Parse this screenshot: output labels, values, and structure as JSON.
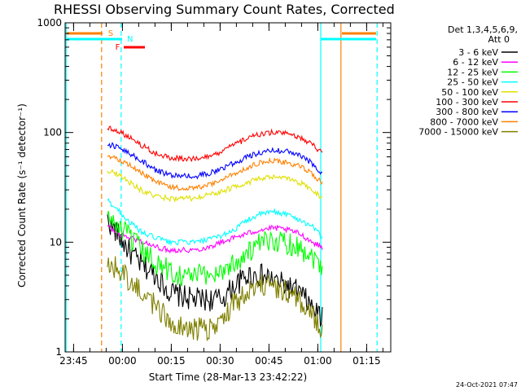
{
  "chart_data": {
    "type": "line",
    "title": "RHESSI Observing Summary Count Rates, Corrected",
    "xlabel": "Start Time (28-Mar-13 23:42:22)",
    "ylabel": "Corrected Count Rate (s⁻¹ detector⁻¹)",
    "y_scale": "log",
    "ylim": [
      1,
      1000
    ],
    "xlim_min_from_start": [
      0,
      100
    ],
    "x_ticks": [
      {
        "label": "23:45",
        "t": 2.6
      },
      {
        "label": "00:00",
        "t": 17.6
      },
      {
        "label": "00:15",
        "t": 32.6
      },
      {
        "label": "00:30",
        "t": 47.6
      },
      {
        "label": "00:45",
        "t": 62.6
      },
      {
        "label": "01:00",
        "t": 77.6
      },
      {
        "label": "01:15",
        "t": 92.6
      }
    ],
    "y_ticks": [
      {
        "label": "1",
        "v": 1
      },
      {
        "label": "10",
        "v": 10
      },
      {
        "label": "100",
        "v": 100
      },
      {
        "label": "1000",
        "v": 1000
      }
    ],
    "legend_header": [
      "Det 1,3,4,5,6,9,",
      "Att 0"
    ],
    "legend_position": "right",
    "series": [
      {
        "name": "3 - 6 keV",
        "color": "#000000",
        "x": [
          13,
          16,
          20,
          24,
          28,
          32,
          36,
          40,
          44,
          48,
          52,
          56,
          60,
          64,
          68,
          72,
          76,
          79
        ],
        "y": [
          16,
          12,
          8,
          6,
          5,
          3.5,
          3.2,
          3,
          3,
          3,
          4,
          5,
          5,
          4.5,
          4,
          3.5,
          2.5,
          2
        ]
      },
      {
        "name": "6 - 12 keV",
        "color": "#ff00ff",
        "x": [
          13,
          16,
          20,
          24,
          28,
          32,
          36,
          40,
          44,
          48,
          52,
          56,
          60,
          64,
          68,
          72,
          76,
          79
        ],
        "y": [
          14,
          12,
          11,
          10,
          9,
          8.5,
          8.5,
          8.5,
          9,
          10,
          11,
          12,
          13,
          13.5,
          13,
          12,
          10,
          9
        ]
      },
      {
        "name": "12 - 25 keV",
        "color": "#00ff00",
        "x": [
          13,
          16,
          20,
          24,
          28,
          32,
          36,
          40,
          44,
          48,
          52,
          56,
          60,
          64,
          68,
          72,
          76,
          79
        ],
        "y": [
          17,
          14,
          11,
          8,
          6.5,
          5.5,
          5,
          5,
          5,
          5.5,
          6.5,
          8,
          9.5,
          10.5,
          10,
          9,
          7.5,
          6
        ]
      },
      {
        "name": "25 - 50 keV",
        "color": "#00ffff",
        "x": [
          13,
          16,
          20,
          24,
          28,
          32,
          36,
          40,
          44,
          48,
          52,
          56,
          60,
          64,
          68,
          72,
          76,
          79
        ],
        "y": [
          24,
          20,
          15,
          12,
          11,
          10,
          10,
          10,
          10.5,
          11.5,
          13,
          16,
          18,
          19,
          18,
          16,
          14,
          11
        ]
      },
      {
        "name": "50 - 100 keV",
        "color": "#e0e000",
        "x": [
          13,
          16,
          20,
          24,
          28,
          32,
          36,
          40,
          44,
          48,
          52,
          56,
          60,
          64,
          68,
          72,
          76,
          79
        ],
        "y": [
          45,
          42,
          35,
          29,
          26,
          25,
          25,
          25,
          27,
          29,
          32,
          35,
          38,
          39,
          38,
          35,
          30,
          25
        ]
      },
      {
        "name": "100 - 300 keV",
        "color": "#ff0000",
        "x": [
          13,
          16,
          20,
          24,
          28,
          32,
          36,
          40,
          44,
          48,
          52,
          56,
          60,
          64,
          68,
          72,
          76,
          79
        ],
        "y": [
          110,
          105,
          90,
          75,
          64,
          59,
          58,
          58,
          60,
          66,
          78,
          88,
          97,
          100,
          97,
          90,
          78,
          65
        ]
      },
      {
        "name": "300 - 800 keV",
        "color": "#0000ff",
        "x": [
          13,
          16,
          20,
          24,
          28,
          32,
          36,
          40,
          44,
          48,
          52,
          56,
          60,
          64,
          68,
          72,
          76,
          79
        ],
        "y": [
          78,
          74,
          64,
          54,
          45,
          41,
          40,
          40,
          42,
          47,
          53,
          60,
          66,
          69,
          67,
          62,
          52,
          42
        ]
      },
      {
        "name": "800 - 7000 keV",
        "color": "#ff8000",
        "x": [
          13,
          16,
          20,
          24,
          28,
          32,
          36,
          40,
          44,
          48,
          52,
          56,
          60,
          64,
          68,
          72,
          76,
          79
        ],
        "y": [
          62,
          58,
          50,
          42,
          35,
          32,
          31,
          31,
          33,
          37,
          42,
          48,
          53,
          55,
          53,
          49,
          42,
          34
        ]
      },
      {
        "name": "7000 - 15000 keV",
        "color": "#808000",
        "x": [
          13,
          16,
          20,
          24,
          28,
          32,
          36,
          40,
          44,
          48,
          52,
          56,
          60,
          64,
          68,
          72,
          76,
          79
        ],
        "y": [
          7,
          5.5,
          4.5,
          3.5,
          2.5,
          2,
          1.6,
          1.6,
          1.6,
          2,
          2.8,
          3.5,
          4,
          4,
          3.5,
          3,
          2.2,
          1.5
        ]
      }
    ],
    "annotations": [
      {
        "label": "S",
        "color": "#ff8000"
      },
      {
        "label": "N",
        "color": "#00ffff"
      },
      {
        "label": "F",
        "color": "#ff0000"
      }
    ],
    "footer_date": "24-Oct-2021 07:47"
  }
}
